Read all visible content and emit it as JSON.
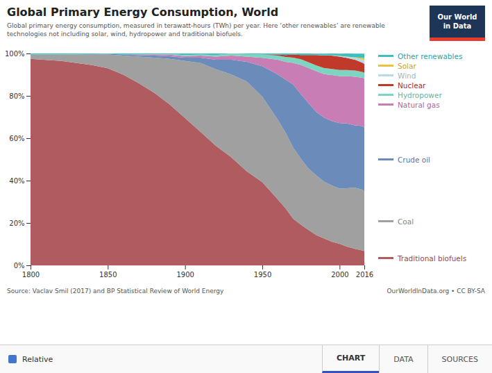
{
  "chart_data": {
    "type": "area",
    "stacked": true,
    "title": "Global Primary Energy Consumption, World",
    "subtitle": "Global primary energy consumption, measured in terawatt-hours (TWh) per year. Here ‘other renewables’ are renewable\ntechnologies not including solar, wind, hydropower and traditional biofuels.",
    "annotations": [
      "Source: Vaclav Smil (2017) and BP Statistical Review of World Energy",
      "OurWorldInData.org • CC BY-SA",
      "Our World",
      "in Data",
      "Relative",
      "CHART",
      "DATA",
      "SOURCES"
    ],
    "x": [
      1800,
      1810,
      1820,
      1830,
      1840,
      1850,
      1860,
      1870,
      1880,
      1890,
      1900,
      1910,
      1920,
      1930,
      1940,
      1950,
      1960,
      1965,
      1970,
      1975,
      1980,
      1985,
      1990,
      1995,
      2000,
      2005,
      2010,
      2015,
      2016
    ],
    "series": [
      {
        "name": "Traditional biofuels",
        "color": "#b05b60",
        "values": [
          97.5,
          97.0,
          96.5,
          95.5,
          94.5,
          93.0,
          90.0,
          86.0,
          81.5,
          76.0,
          69.5,
          63.0,
          56.43,
          50.99,
          44.33,
          39.3,
          31.18,
          26.96,
          21.95,
          19.21,
          16.66,
          14.28,
          12.68,
          11.11,
          10.14,
          8.73,
          7.82,
          6.99,
          6.74
        ]
      },
      {
        "name": "Coal",
        "color": "#a0a0a0",
        "values": [
          2.0,
          2.5,
          3.0,
          4.0,
          5.0,
          6.5,
          9.0,
          12.5,
          16.5,
          21.5,
          27.0,
          32.5,
          36.13,
          39.1,
          42.36,
          40.29,
          37.62,
          35.78,
          33.65,
          31.03,
          28.92,
          28.07,
          26.82,
          26.57,
          26.08,
          27.66,
          28.86,
          28.64,
          27.93
        ]
      },
      {
        "name": "Crude oil",
        "color": "#6b8cba",
        "values": [
          0.0,
          0.0,
          0.0,
          0.1,
          0.2,
          0.3,
          0.5,
          0.7,
          1.0,
          1.2,
          1.5,
          2.5,
          4.45,
          6.93,
          9.35,
          14.42,
          21.28,
          25.0,
          29.75,
          30.54,
          30.88,
          30.04,
          30.24,
          30.43,
          30.91,
          30.58,
          29.35,
          30.09,
          30.34
        ]
      },
      {
        "name": "Natural gas",
        "color": "#c97db5",
        "values": [
          0.0,
          0.0,
          0.0,
          0.0,
          0.0,
          0.0,
          0.0,
          0.3,
          0.5,
          0.7,
          0.8,
          1.0,
          1.48,
          1.98,
          2.46,
          3.98,
          6.93,
          8.33,
          10.24,
          13.79,
          16.66,
          19.21,
          20.48,
          21.73,
          22.22,
          22.33,
          22.99,
          22.81,
          23.12
        ]
      },
      {
        "name": "Hydropower",
        "color": "#7dd4c0",
        "values": [
          0.0,
          0.0,
          0.0,
          0.0,
          0.0,
          0.0,
          0.0,
          0.0,
          0.2,
          0.3,
          0.5,
          0.5,
          0.79,
          0.99,
          1.18,
          1.49,
          1.98,
          2.25,
          2.43,
          2.75,
          2.74,
          2.75,
          2.92,
          2.89,
          2.89,
          2.91,
          2.93,
          2.71,
          2.69
        ]
      },
      {
        "name": "Nuclear",
        "color": "#c0392b",
        "values": [
          0.0,
          0.0,
          0.0,
          0.0,
          0.0,
          0.0,
          0.0,
          0.0,
          0.0,
          0.0,
          0.0,
          0.0,
          0.0,
          0.0,
          0.0,
          0.0,
          0.49,
          0.98,
          1.46,
          1.97,
          3.43,
          4.92,
          5.85,
          6.28,
          6.28,
          5.63,
          5.08,
          4.36,
          4.23
        ]
      },
      {
        "name": "Wind",
        "color": "#b8d9e8",
        "values": [
          0.0,
          0.0,
          0.0,
          0.0,
          0.0,
          0.0,
          0.0,
          0.0,
          0.0,
          0.0,
          0.0,
          0.0,
          0.0,
          0.0,
          0.0,
          0.0,
          0.0,
          0.0,
          0.0,
          0.0,
          0.0,
          0.0,
          0.09,
          0.19,
          0.28,
          0.58,
          0.97,
          1.55,
          1.73
        ]
      },
      {
        "name": "Solar",
        "color": "#e8c43a",
        "values": [
          0.0,
          0.0,
          0.0,
          0.0,
          0.0,
          0.0,
          0.0,
          0.0,
          0.0,
          0.0,
          0.0,
          0.0,
          0.0,
          0.0,
          0.0,
          0.0,
          0.0,
          0.0,
          0.0,
          0.0,
          0.0,
          0.0,
          0.0,
          0.0,
          0.04,
          0.09,
          0.19,
          0.77,
          0.96
        ]
      },
      {
        "name": "Other renewables",
        "color": "#3bbfbf",
        "values": [
          0.5,
          0.5,
          0.5,
          0.4,
          0.3,
          0.2,
          0.5,
          0.5,
          0.3,
          0.3,
          0.7,
          0.5,
          0.69,
          0.0,
          0.29,
          0.49,
          0.49,
          0.68,
          0.48,
          0.68,
          0.68,
          0.68,
          0.87,
          0.77,
          1.11,
          1.45,
          1.76,
          2.03,
          2.21
        ]
      }
    ],
    "xlim": [
      1800,
      2016
    ],
    "xticks": [
      1800,
      1850,
      1900,
      1950,
      2000,
      2016
    ],
    "ylim": [
      0,
      100
    ],
    "yticks": [
      {
        "value": 0,
        "label": "0%"
      },
      {
        "value": 20,
        "label": "20%"
      },
      {
        "value": 40,
        "label": "40%"
      },
      {
        "value": 60,
        "label": "60%"
      },
      {
        "value": 80,
        "label": "80%"
      },
      {
        "value": 100,
        "label": "100%"
      }
    ],
    "grid": true,
    "legend": "right"
  }
}
